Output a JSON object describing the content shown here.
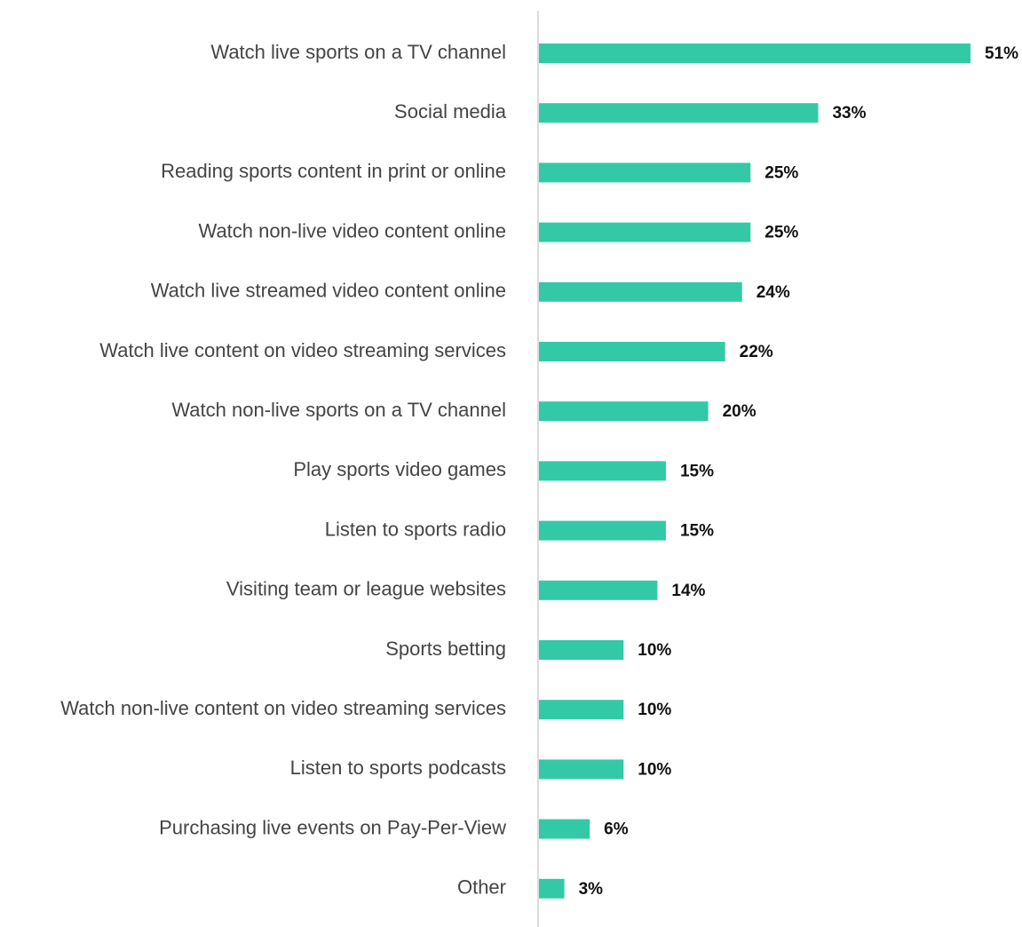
{
  "chart_data": {
    "type": "barh",
    "categories": [
      "Watch live sports on a TV channel",
      "Social media",
      "Reading sports content in print or online",
      "Watch non-live video content online",
      "Watch live streamed video content online",
      "Watch live content on video streaming services",
      "Watch non-live sports on a TV channel",
      "Play sports video games",
      "Listen to sports radio",
      "Visiting team or league websites",
      "Sports betting",
      "Watch non-live content on video streaming services",
      "Listen to sports podcasts",
      "Purchasing live events on Pay-Per-View",
      "Other"
    ],
    "values": [
      51,
      33,
      25,
      25,
      24,
      22,
      20,
      15,
      15,
      14,
      10,
      10,
      10,
      6,
      3
    ],
    "value_labels": [
      "51%",
      "33%",
      "25%",
      "25%",
      "24%",
      "22%",
      "20%",
      "15%",
      "15%",
      "14%",
      "10%",
      "10%",
      "10%",
      "6%",
      "3%"
    ],
    "color": "#33c9a6"
  }
}
